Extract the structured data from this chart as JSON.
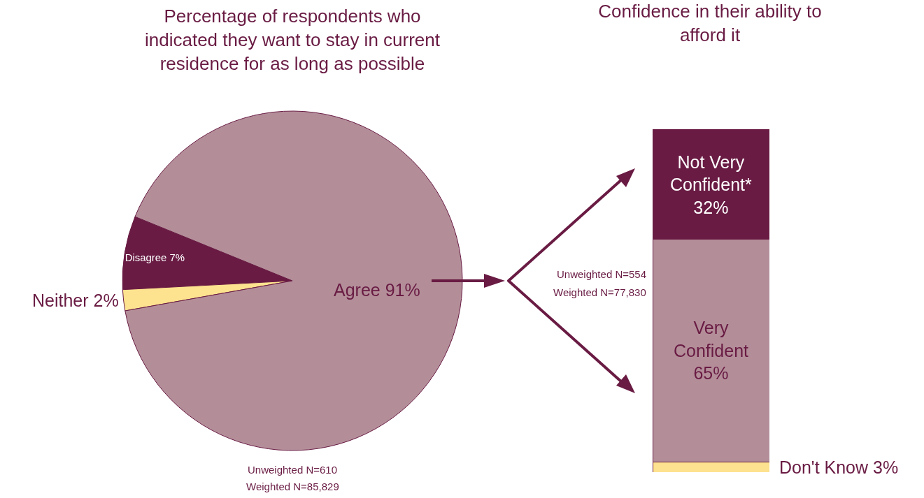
{
  "chart_data": [
    {
      "type": "pie",
      "title": "Percentage of respondents who indicated they want to stay in current residence for as long as possible",
      "categories": [
        "Disagree",
        "Neither",
        "Agree"
      ],
      "values": [
        7,
        2,
        91
      ],
      "value_labels": [
        "7%",
        "2%",
        "91%"
      ],
      "colors": [
        "#691b43",
        "#fde28f",
        "#b38e99"
      ],
      "annotations": [
        "Unweighted N=610",
        "Weighted N=85,829"
      ]
    },
    {
      "type": "bar",
      "title": "Confidence in their ability to afford it",
      "categories": [
        null
      ],
      "stacked": true,
      "series": [
        {
          "name": "Don't Know",
          "color": "#fde28f",
          "values": [
            3
          ],
          "value_labels": [
            "3%"
          ]
        },
        {
          "name": "Very Confident",
          "color": "#b38e99",
          "values": [
            65
          ],
          "value_labels": [
            "65%"
          ]
        },
        {
          "name": "Not Very Confident*",
          "color": "#691b43",
          "values": [
            32
          ],
          "value_labels": [
            "32%"
          ]
        }
      ],
      "annotations": [
        "Unweighted N=554",
        "Weighted N=77,830"
      ]
    }
  ]
}
